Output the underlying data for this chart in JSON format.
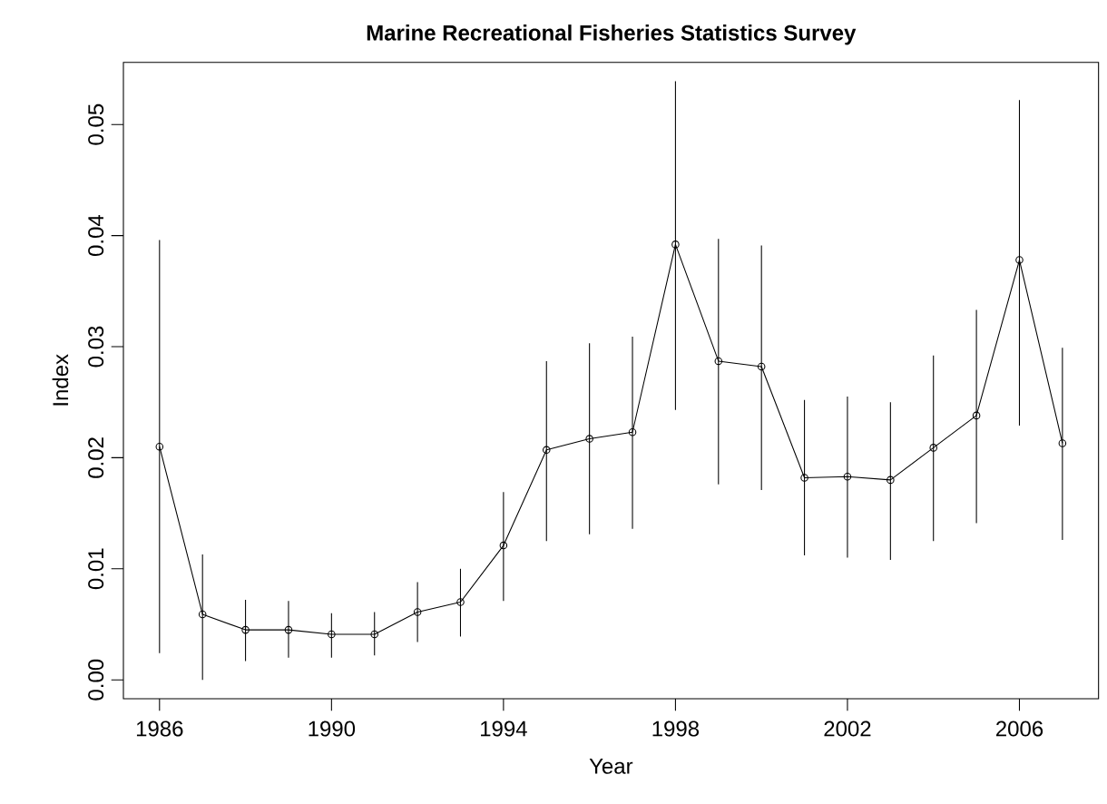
{
  "chart_data": {
    "type": "line",
    "title": "Marine Recreational Fisheries Statistics Survey",
    "xlabel": "Year",
    "ylabel": "Index",
    "x": [
      1986,
      1987,
      1988,
      1989,
      1990,
      1991,
      1992,
      1993,
      1994,
      1995,
      1996,
      1997,
      1998,
      1999,
      2000,
      2001,
      2002,
      2003,
      2004,
      2005,
      2006,
      2007
    ],
    "values": [
      0.021,
      0.0059,
      0.0045,
      0.0045,
      0.0041,
      0.0041,
      0.0061,
      0.007,
      0.0121,
      0.0207,
      0.0217,
      0.0223,
      0.0392,
      0.0287,
      0.0282,
      0.0182,
      0.0183,
      0.018,
      0.0209,
      0.0238,
      0.0378,
      0.0213
    ],
    "errors": [
      [
        0.0024,
        0.0396
      ],
      [
        0.0,
        0.0113
      ],
      [
        0.0017,
        0.0072
      ],
      [
        0.002,
        0.0071
      ],
      [
        0.002,
        0.006
      ],
      [
        0.0022,
        0.0061
      ],
      [
        0.0034,
        0.0088
      ],
      [
        0.0039,
        0.01
      ],
      [
        0.0071,
        0.0169
      ],
      [
        0.0125,
        0.0287
      ],
      [
        0.0131,
        0.0303
      ],
      [
        0.0136,
        0.0309
      ],
      [
        0.0243,
        0.0539
      ],
      [
        0.0176,
        0.0397
      ],
      [
        0.0171,
        0.0391
      ],
      [
        0.0112,
        0.0252
      ],
      [
        0.011,
        0.0255
      ],
      [
        0.0108,
        0.025
      ],
      [
        0.0125,
        0.0292
      ],
      [
        0.0141,
        0.0333
      ],
      [
        0.0229,
        0.0522
      ],
      [
        0.0126,
        0.0299
      ]
    ],
    "color": "#000000",
    "marker": "circle",
    "line_style": "solid",
    "grid": false,
    "xlim": [
      1985.16,
      2007.84
    ],
    "ylim": [
      -0.0017,
      0.0556
    ],
    "xticks": [
      1986,
      1990,
      1994,
      1998,
      2002,
      2006
    ],
    "yticks": [
      {
        "value": 0,
        "label": "0.00"
      },
      {
        "value": 0.01,
        "label": "0.01"
      },
      {
        "value": 0.02,
        "label": "0.02"
      },
      {
        "value": 0.03,
        "label": "0.03"
      },
      {
        "value": 0.04,
        "label": "0.04"
      },
      {
        "value": 0.05,
        "label": "0.05"
      }
    ]
  }
}
